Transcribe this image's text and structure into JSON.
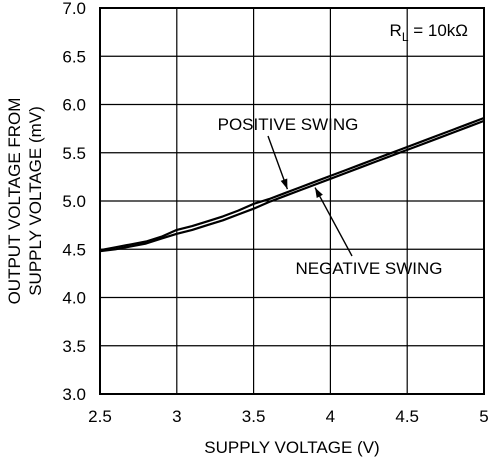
{
  "chart_data": {
    "type": "line",
    "title": "",
    "xlabel": "SUPPLY VOLTAGE (V)",
    "ylabel_lines": [
      "OUTPUT VOLTAGE FROM",
      "SUPPLY VOLTAGE (mV)"
    ],
    "xlim": [
      2.5,
      5
    ],
    "ylim": [
      3.0,
      7.0
    ],
    "x_ticks": [
      2.5,
      3,
      3.5,
      4,
      4.5,
      5
    ],
    "x_tick_labels": [
      "2.5",
      "3",
      "3.5",
      "4",
      "4.5",
      "5"
    ],
    "y_ticks": [
      3.0,
      3.5,
      4.0,
      4.5,
      5.0,
      5.5,
      6.0,
      6.5,
      7.0
    ],
    "y_tick_labels": [
      "3.0",
      "3.5",
      "4.0",
      "4.5",
      "5.0",
      "5.5",
      "6.0",
      "6.5",
      "7.0"
    ],
    "grid": true,
    "condition_label": {
      "main": "R",
      "sub": "L",
      "rest": " = 10kΩ"
    },
    "series": [
      {
        "name": "POSITIVE SWING",
        "x": [
          2.5,
          2.6,
          2.7,
          2.8,
          2.9,
          3.0,
          3.1,
          3.2,
          3.3,
          3.4,
          3.5,
          3.6,
          3.7,
          3.8,
          3.9,
          4.0,
          4.1,
          4.2,
          4.3,
          4.4,
          4.5,
          4.6,
          4.7,
          4.8,
          4.9,
          5.0
        ],
        "y": [
          4.49,
          4.52,
          4.55,
          4.58,
          4.63,
          4.7,
          4.74,
          4.79,
          4.84,
          4.9,
          4.97,
          5.02,
          5.08,
          5.14,
          5.2,
          5.26,
          5.32,
          5.38,
          5.44,
          5.5,
          5.56,
          5.62,
          5.68,
          5.74,
          5.8,
          5.86
        ]
      },
      {
        "name": "NEGATIVE SWING",
        "x": [
          2.5,
          2.6,
          2.7,
          2.8,
          2.9,
          3.0,
          3.1,
          3.2,
          3.3,
          3.4,
          3.5,
          3.6,
          3.7,
          3.8,
          3.9,
          4.0,
          4.1,
          4.2,
          4.3,
          4.4,
          4.5,
          4.6,
          4.7,
          4.8,
          4.9,
          5.0
        ],
        "y": [
          4.48,
          4.5,
          4.53,
          4.56,
          4.61,
          4.66,
          4.7,
          4.75,
          4.8,
          4.86,
          4.92,
          4.99,
          5.05,
          5.11,
          5.17,
          5.23,
          5.29,
          5.35,
          5.41,
          5.47,
          5.53,
          5.59,
          5.65,
          5.71,
          5.77,
          5.83
        ]
      }
    ],
    "annotations": [
      {
        "text": "POSITIVE SWING",
        "series": 0,
        "point_x": 3.72
      },
      {
        "text": "NEGATIVE SWING",
        "series": 1,
        "point_x": 3.9
      }
    ]
  }
}
